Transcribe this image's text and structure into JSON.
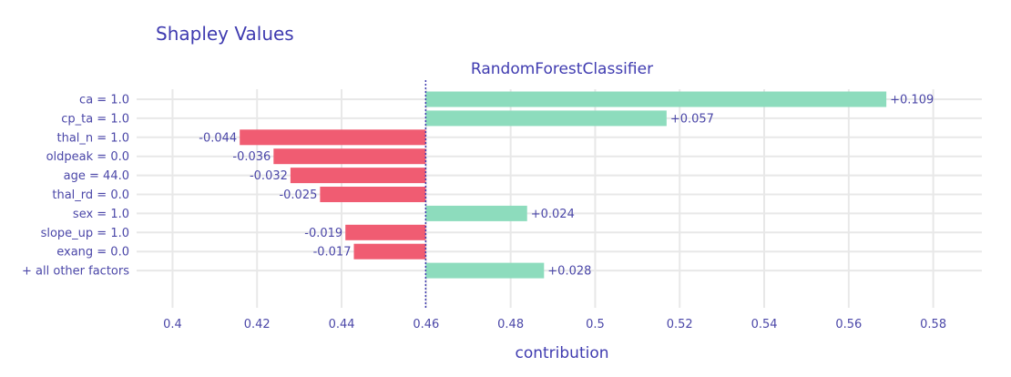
{
  "chart_data": {
    "type": "bar",
    "orientation": "horizontal",
    "title": "Shapley Values",
    "subtitle": "RandomForestClassifier",
    "xlabel": "contribution",
    "ylabel": "",
    "xlim": [
      0.3915,
      0.5915
    ],
    "x_ticks": [
      {
        "value": 0.4,
        "label": "0.4"
      },
      {
        "value": 0.42,
        "label": "0.42"
      },
      {
        "value": 0.44,
        "label": "0.44"
      },
      {
        "value": 0.46,
        "label": "0.46"
      },
      {
        "value": 0.48,
        "label": "0.48"
      },
      {
        "value": 0.5,
        "label": "0.5"
      },
      {
        "value": 0.52,
        "label": "0.52"
      },
      {
        "value": 0.54,
        "label": "0.54"
      },
      {
        "value": 0.56,
        "label": "0.56"
      },
      {
        "value": 0.58,
        "label": "0.58"
      }
    ],
    "baseline": 0.4599,
    "grid": true,
    "categories": [
      "ca = 1.0",
      "cp_ta = 1.0",
      "thal_n = 1.0",
      "oldpeak = 0.0",
      "age = 44.0",
      "thal_rd = 0.0",
      "sex = 1.0",
      "slope_up = 1.0",
      "exang = 0.0",
      "+ all other factors"
    ],
    "values": [
      0.109,
      0.057,
      -0.044,
      -0.036,
      -0.032,
      -0.025,
      0.024,
      -0.019,
      -0.017,
      0.028
    ],
    "labels": [
      "+0.109",
      "+0.057",
      "-0.044",
      "-0.036",
      "-0.032",
      "-0.025",
      "+0.024",
      "-0.019",
      "-0.017",
      "+0.028"
    ],
    "colors": {
      "positive": "#8ddcbd",
      "negative": "#f05c72",
      "baseline_line": "#3f3bb0"
    }
  }
}
